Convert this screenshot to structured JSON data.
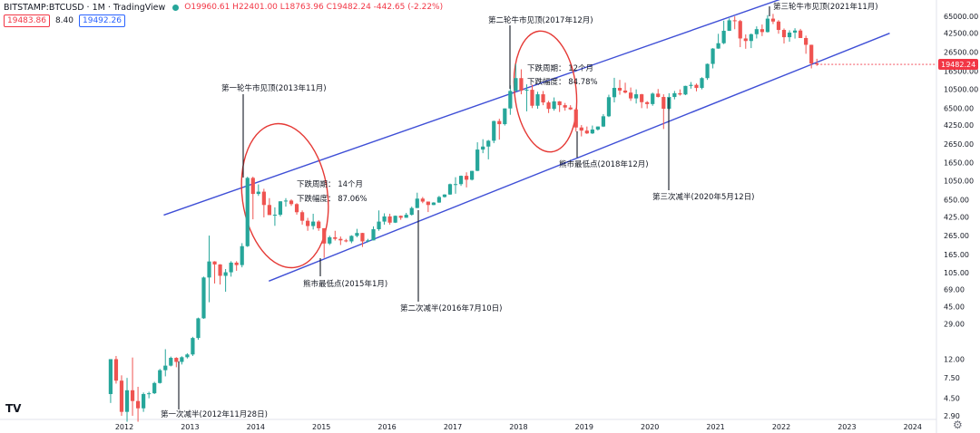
{
  "header": {
    "symbol": "BITSTAMP:BTCUSD · 1M · TradingView",
    "ohlc": "O19960.61  H22401.00  L18763.96  C19482.24  -442.65 (-2.22%)",
    "sell_price": "19483.86",
    "spread": "8.40",
    "buy_price": "19492.26"
  },
  "colors": {
    "up": "#26a69a",
    "down": "#ef5350",
    "channel": "#3f4fd6",
    "circle": "#e53935",
    "price_tag": "#f23645"
  },
  "logo_icon": "tradingview-logo-icon",
  "settings_icon": "gear-icon",
  "chart_data": {
    "type": "candlestick",
    "title": "",
    "y_scale": "log",
    "y_ticks": [
      "65000.00",
      "42500.00",
      "26500.00",
      "16500.00",
      "10500.00",
      "6500.00",
      "4250.00",
      "2650.00",
      "1650.00",
      "1050.00",
      "650.00",
      "425.00",
      "265.00",
      "165.00",
      "105.00",
      "69.00",
      "45.00",
      "29.00",
      "12.00",
      "7.50",
      "4.50",
      "2.90"
    ],
    "x_ticks": [
      "2012",
      "2013",
      "2014",
      "2015",
      "2016",
      "2017",
      "2018",
      "2019",
      "2020",
      "2021",
      "2022",
      "2023",
      "2024"
    ],
    "last_price_label": "19482.24",
    "annotations": [
      {
        "id": "halving1",
        "text": "第一次减半(2012年11月28日)"
      },
      {
        "id": "top1",
        "text": "第一轮牛市见顶(2013年11月)"
      },
      {
        "id": "cycle1_period",
        "text": "下跌周期： 14个月"
      },
      {
        "id": "cycle1_drop",
        "text": "下跌幅度： 87.06%"
      },
      {
        "id": "bottom1",
        "text": "熊市最低点(2015年1月)"
      },
      {
        "id": "halving2",
        "text": "第二次减半(2016年7月10日)"
      },
      {
        "id": "top2",
        "text": "第二轮牛市见顶(2017年12月)"
      },
      {
        "id": "cycle2_period",
        "text": "下跌周期： 12个月"
      },
      {
        "id": "cycle2_drop",
        "text": "下跌幅度： 84.78%"
      },
      {
        "id": "bottom2",
        "text": "熊市最低点(2018年12月)"
      },
      {
        "id": "halving3",
        "text": "第三次减半(2020年5月12日)"
      },
      {
        "id": "top3",
        "text": "第三轮牛市见顶(2021年11月)"
      }
    ],
    "candles": [
      {
        "t": "2011-10",
        "o": 5,
        "h": 12,
        "l": 4,
        "c": 12
      },
      {
        "t": "2011-11",
        "o": 12,
        "h": 13,
        "l": 6.5,
        "c": 7
      },
      {
        "t": "2011-12",
        "o": 7,
        "h": 8,
        "l": 2.9,
        "c": 3.2
      },
      {
        "t": "2012-01",
        "o": 3.2,
        "h": 7.5,
        "l": 2.5,
        "c": 5.5
      },
      {
        "t": "2012-02",
        "o": 5.5,
        "h": 12.5,
        "l": 2.9,
        "c": 4.2
      },
      {
        "t": "2012-03",
        "o": 4.2,
        "h": 6,
        "l": 2.5,
        "c": 3.5
      },
      {
        "t": "2012-04",
        "o": 3.5,
        "h": 5.2,
        "l": 3.2,
        "c": 5
      },
      {
        "t": "2012-05",
        "o": 5,
        "h": 5.3,
        "l": 4.5,
        "c": 5.1
      },
      {
        "t": "2012-06",
        "o": 5.1,
        "h": 6.8,
        "l": 5,
        "c": 6.6
      },
      {
        "t": "2012-07",
        "o": 6.6,
        "h": 9.4,
        "l": 6.5,
        "c": 9.1
      },
      {
        "t": "2012-08",
        "o": 9.1,
        "h": 15.4,
        "l": 7.8,
        "c": 10.2
      },
      {
        "t": "2012-09",
        "o": 10.2,
        "h": 12.8,
        "l": 10,
        "c": 12.4
      },
      {
        "t": "2012-10",
        "o": 12.4,
        "h": 12.6,
        "l": 9.8,
        "c": 11.2
      },
      {
        "t": "2012-11",
        "o": 11.2,
        "h": 12.9,
        "l": 10.5,
        "c": 12.6
      },
      {
        "t": "2012-12",
        "o": 12.6,
        "h": 13.9,
        "l": 12.2,
        "c": 13.5
      },
      {
        "t": "2013-01",
        "o": 13.5,
        "h": 21,
        "l": 13,
        "c": 20.4
      },
      {
        "t": "2013-02",
        "o": 20.4,
        "h": 34,
        "l": 19.5,
        "c": 33.4
      },
      {
        "t": "2013-03",
        "o": 33.4,
        "h": 95,
        "l": 33,
        "c": 93
      },
      {
        "t": "2013-04",
        "o": 93,
        "h": 266,
        "l": 50,
        "c": 139
      },
      {
        "t": "2013-05",
        "o": 139,
        "h": 140,
        "l": 80,
        "c": 129
      },
      {
        "t": "2013-06",
        "o": 129,
        "h": 130,
        "l": 78,
        "c": 97
      },
      {
        "t": "2013-07",
        "o": 97,
        "h": 115,
        "l": 65,
        "c": 106
      },
      {
        "t": "2013-08",
        "o": 106,
        "h": 140,
        "l": 95,
        "c": 135
      },
      {
        "t": "2013-09",
        "o": 135,
        "h": 140,
        "l": 110,
        "c": 127
      },
      {
        "t": "2013-10",
        "o": 127,
        "h": 220,
        "l": 120,
        "c": 204
      },
      {
        "t": "2013-11",
        "o": 204,
        "h": 1163,
        "l": 200,
        "c": 1130
      },
      {
        "t": "2013-12",
        "o": 1130,
        "h": 1165,
        "l": 400,
        "c": 756
      },
      {
        "t": "2014-01",
        "o": 756,
        "h": 960,
        "l": 720,
        "c": 800
      },
      {
        "t": "2014-02",
        "o": 800,
        "h": 860,
        "l": 420,
        "c": 573
      },
      {
        "t": "2014-03",
        "o": 573,
        "h": 680,
        "l": 450,
        "c": 445
      },
      {
        "t": "2014-04",
        "o": 445,
        "h": 540,
        "l": 340,
        "c": 449
      },
      {
        "t": "2014-05",
        "o": 449,
        "h": 630,
        "l": 430,
        "c": 628
      },
      {
        "t": "2014-06",
        "o": 628,
        "h": 680,
        "l": 550,
        "c": 640
      },
      {
        "t": "2014-07",
        "o": 640,
        "h": 660,
        "l": 560,
        "c": 586
      },
      {
        "t": "2014-08",
        "o": 586,
        "h": 600,
        "l": 450,
        "c": 478
      },
      {
        "t": "2014-09",
        "o": 478,
        "h": 500,
        "l": 350,
        "c": 386
      },
      {
        "t": "2014-10",
        "o": 386,
        "h": 415,
        "l": 300,
        "c": 338
      },
      {
        "t": "2014-11",
        "o": 338,
        "h": 460,
        "l": 310,
        "c": 378
      },
      {
        "t": "2014-12",
        "o": 378,
        "h": 390,
        "l": 300,
        "c": 320
      },
      {
        "t": "2015-01",
        "o": 320,
        "h": 320,
        "l": 152,
        "c": 218
      },
      {
        "t": "2015-02",
        "o": 218,
        "h": 265,
        "l": 210,
        "c": 255
      },
      {
        "t": "2015-03",
        "o": 255,
        "h": 300,
        "l": 235,
        "c": 245
      },
      {
        "t": "2015-04",
        "o": 245,
        "h": 260,
        "l": 210,
        "c": 236
      },
      {
        "t": "2015-05",
        "o": 236,
        "h": 245,
        "l": 225,
        "c": 230
      },
      {
        "t": "2015-06",
        "o": 230,
        "h": 268,
        "l": 220,
        "c": 264
      },
      {
        "t": "2015-07",
        "o": 264,
        "h": 315,
        "l": 255,
        "c": 284
      },
      {
        "t": "2015-08",
        "o": 284,
        "h": 285,
        "l": 200,
        "c": 230
      },
      {
        "t": "2015-09",
        "o": 230,
        "h": 245,
        "l": 225,
        "c": 236
      },
      {
        "t": "2015-10",
        "o": 236,
        "h": 335,
        "l": 236,
        "c": 312
      },
      {
        "t": "2015-11",
        "o": 312,
        "h": 500,
        "l": 300,
        "c": 378
      },
      {
        "t": "2015-12",
        "o": 378,
        "h": 465,
        "l": 350,
        "c": 430
      },
      {
        "t": "2016-01",
        "o": 430,
        "h": 460,
        "l": 350,
        "c": 368
      },
      {
        "t": "2016-02",
        "o": 368,
        "h": 440,
        "l": 365,
        "c": 437
      },
      {
        "t": "2016-03",
        "o": 437,
        "h": 440,
        "l": 395,
        "c": 416
      },
      {
        "t": "2016-04",
        "o": 416,
        "h": 470,
        "l": 415,
        "c": 448
      },
      {
        "t": "2016-05",
        "o": 448,
        "h": 550,
        "l": 440,
        "c": 531
      },
      {
        "t": "2016-06",
        "o": 531,
        "h": 780,
        "l": 530,
        "c": 672
      },
      {
        "t": "2016-07",
        "o": 672,
        "h": 700,
        "l": 600,
        "c": 624
      },
      {
        "t": "2016-08",
        "o": 624,
        "h": 625,
        "l": 480,
        "c": 573
      },
      {
        "t": "2016-09",
        "o": 573,
        "h": 615,
        "l": 570,
        "c": 609
      },
      {
        "t": "2016-10",
        "o": 609,
        "h": 720,
        "l": 605,
        "c": 700
      },
      {
        "t": "2016-11",
        "o": 700,
        "h": 750,
        "l": 690,
        "c": 745
      },
      {
        "t": "2016-12",
        "o": 745,
        "h": 980,
        "l": 740,
        "c": 966
      },
      {
        "t": "2017-01",
        "o": 966,
        "h": 1150,
        "l": 760,
        "c": 967
      },
      {
        "t": "2017-02",
        "o": 967,
        "h": 1200,
        "l": 925,
        "c": 1190
      },
      {
        "t": "2017-03",
        "o": 1190,
        "h": 1300,
        "l": 890,
        "c": 1080
      },
      {
        "t": "2017-04",
        "o": 1080,
        "h": 1350,
        "l": 1060,
        "c": 1348
      },
      {
        "t": "2017-05",
        "o": 1348,
        "h": 2760,
        "l": 1340,
        "c": 2300
      },
      {
        "t": "2017-06",
        "o": 2300,
        "h": 2980,
        "l": 2100,
        "c": 2480
      },
      {
        "t": "2017-07",
        "o": 2480,
        "h": 2930,
        "l": 1800,
        "c": 2870
      },
      {
        "t": "2017-08",
        "o": 2870,
        "h": 4750,
        "l": 2700,
        "c": 4700
      },
      {
        "t": "2017-09",
        "o": 4700,
        "h": 4980,
        "l": 2950,
        "c": 4350
      },
      {
        "t": "2017-10",
        "o": 4350,
        "h": 6450,
        "l": 4200,
        "c": 6450
      },
      {
        "t": "2017-11",
        "o": 6450,
        "h": 11500,
        "l": 5500,
        "c": 10000
      },
      {
        "t": "2017-12",
        "o": 10000,
        "h": 19666,
        "l": 10000,
        "c": 13800
      },
      {
        "t": "2018-01",
        "o": 13800,
        "h": 17200,
        "l": 9200,
        "c": 10100
      },
      {
        "t": "2018-02",
        "o": 10100,
        "h": 11800,
        "l": 6000,
        "c": 10300
      },
      {
        "t": "2018-03",
        "o": 10300,
        "h": 11700,
        "l": 6500,
        "c": 6900
      },
      {
        "t": "2018-04",
        "o": 6900,
        "h": 9800,
        "l": 6400,
        "c": 9200
      },
      {
        "t": "2018-05",
        "o": 9200,
        "h": 9990,
        "l": 7000,
        "c": 7500
      },
      {
        "t": "2018-06",
        "o": 7500,
        "h": 7800,
        "l": 5750,
        "c": 6380
      },
      {
        "t": "2018-07",
        "o": 6380,
        "h": 8500,
        "l": 6100,
        "c": 7700
      },
      {
        "t": "2018-08",
        "o": 7700,
        "h": 7760,
        "l": 5900,
        "c": 7000
      },
      {
        "t": "2018-09",
        "o": 7000,
        "h": 7400,
        "l": 6100,
        "c": 6600
      },
      {
        "t": "2018-10",
        "o": 6600,
        "h": 7000,
        "l": 6200,
        "c": 6300
      },
      {
        "t": "2018-11",
        "o": 6300,
        "h": 6550,
        "l": 3600,
        "c": 4000
      },
      {
        "t": "2018-12",
        "o": 4000,
        "h": 4250,
        "l": 3200,
        "c": 3700
      },
      {
        "t": "2019-01",
        "o": 3700,
        "h": 4100,
        "l": 3400,
        "c": 3450
      },
      {
        "t": "2019-02",
        "o": 3450,
        "h": 4200,
        "l": 3400,
        "c": 3800
      },
      {
        "t": "2019-03",
        "o": 3800,
        "h": 4100,
        "l": 3700,
        "c": 4100
      },
      {
        "t": "2019-04",
        "o": 4100,
        "h": 5600,
        "l": 4050,
        "c": 5300
      },
      {
        "t": "2019-05",
        "o": 5300,
        "h": 9100,
        "l": 5200,
        "c": 8550
      },
      {
        "t": "2019-06",
        "o": 8550,
        "h": 13900,
        "l": 7500,
        "c": 10800
      },
      {
        "t": "2019-07",
        "o": 10800,
        "h": 13200,
        "l": 9100,
        "c": 10100
      },
      {
        "t": "2019-08",
        "o": 10100,
        "h": 12300,
        "l": 9400,
        "c": 9600
      },
      {
        "t": "2019-09",
        "o": 9600,
        "h": 10900,
        "l": 7800,
        "c": 8300
      },
      {
        "t": "2019-10",
        "o": 8300,
        "h": 10400,
        "l": 7300,
        "c": 9200
      },
      {
        "t": "2019-11",
        "o": 9200,
        "h": 9300,
        "l": 6500,
        "c": 7550
      },
      {
        "t": "2019-12",
        "o": 7550,
        "h": 7750,
        "l": 6450,
        "c": 7200
      },
      {
        "t": "2020-01",
        "o": 7200,
        "h": 9600,
        "l": 6900,
        "c": 9350
      },
      {
        "t": "2020-02",
        "o": 9350,
        "h": 10500,
        "l": 8500,
        "c": 8600
      },
      {
        "t": "2020-03",
        "o": 8600,
        "h": 9200,
        "l": 3850,
        "c": 6400
      },
      {
        "t": "2020-04",
        "o": 6400,
        "h": 9450,
        "l": 6200,
        "c": 8600
      },
      {
        "t": "2020-05",
        "o": 8600,
        "h": 10000,
        "l": 8100,
        "c": 9450
      },
      {
        "t": "2020-06",
        "o": 9450,
        "h": 10400,
        "l": 8900,
        "c": 9150
      },
      {
        "t": "2020-07",
        "o": 9150,
        "h": 11400,
        "l": 9000,
        "c": 11350
      },
      {
        "t": "2020-08",
        "o": 11350,
        "h": 12500,
        "l": 10600,
        "c": 11650
      },
      {
        "t": "2020-09",
        "o": 11650,
        "h": 12050,
        "l": 9900,
        "c": 10780
      },
      {
        "t": "2020-10",
        "o": 10780,
        "h": 14100,
        "l": 10400,
        "c": 13800
      },
      {
        "t": "2020-11",
        "o": 13800,
        "h": 19900,
        "l": 13200,
        "c": 19700
      },
      {
        "t": "2020-12",
        "o": 19700,
        "h": 29300,
        "l": 17600,
        "c": 28950
      },
      {
        "t": "2021-01",
        "o": 28950,
        "h": 41900,
        "l": 28800,
        "c": 33100
      },
      {
        "t": "2021-02",
        "o": 33100,
        "h": 58300,
        "l": 32300,
        "c": 45200
      },
      {
        "t": "2021-03",
        "o": 45200,
        "h": 61800,
        "l": 45000,
        "c": 58800
      },
      {
        "t": "2021-04",
        "o": 58800,
        "h": 64900,
        "l": 47000,
        "c": 57700
      },
      {
        "t": "2021-05",
        "o": 57700,
        "h": 59500,
        "l": 30000,
        "c": 37300
      },
      {
        "t": "2021-06",
        "o": 37300,
        "h": 41300,
        "l": 28800,
        "c": 35000
      },
      {
        "t": "2021-07",
        "o": 35000,
        "h": 42200,
        "l": 29300,
        "c": 41500
      },
      {
        "t": "2021-08",
        "o": 41500,
        "h": 50500,
        "l": 37300,
        "c": 47100
      },
      {
        "t": "2021-09",
        "o": 47100,
        "h": 52900,
        "l": 39600,
        "c": 43800
      },
      {
        "t": "2021-10",
        "o": 43800,
        "h": 67000,
        "l": 43300,
        "c": 61300
      },
      {
        "t": "2021-11",
        "o": 61300,
        "h": 69000,
        "l": 53500,
        "c": 57000
      },
      {
        "t": "2021-12",
        "o": 57000,
        "h": 59100,
        "l": 42000,
        "c": 46200
      },
      {
        "t": "2022-01",
        "o": 46200,
        "h": 47900,
        "l": 32900,
        "c": 38500
      },
      {
        "t": "2022-02",
        "o": 38500,
        "h": 45800,
        "l": 34300,
        "c": 43200
      },
      {
        "t": "2022-03",
        "o": 43200,
        "h": 48200,
        "l": 37200,
        "c": 45500
      },
      {
        "t": "2022-04",
        "o": 45500,
        "h": 47400,
        "l": 37700,
        "c": 37700
      },
      {
        "t": "2022-05",
        "o": 37700,
        "h": 40000,
        "l": 25400,
        "c": 31800
      },
      {
        "t": "2022-06",
        "o": 31800,
        "h": 31900,
        "l": 17600,
        "c": 19900
      },
      {
        "t": "2022-07",
        "o": 19960.61,
        "h": 22401,
        "l": 18763.96,
        "c": 19482.24
      }
    ]
  }
}
